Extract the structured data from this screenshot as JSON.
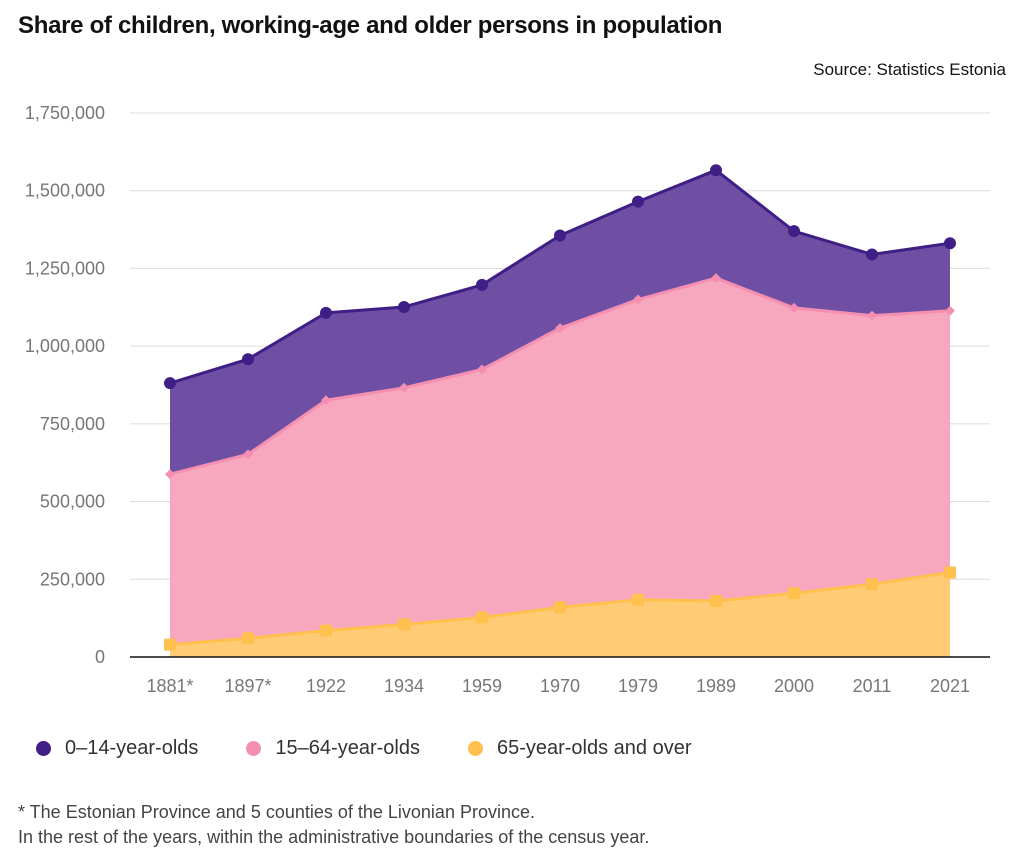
{
  "title": "Share of children, working-age and older persons in population",
  "source": "Source: Statistics Estonia",
  "footnote": {
    "line1": "* The Estonian Province and 5 counties of the Livonian Province.",
    "line2": "In the rest of the years, within the administrative boundaries of the census year."
  },
  "chart_data": {
    "type": "area",
    "stacked": true,
    "categories": [
      "1881*",
      "1897*",
      "1922",
      "1934",
      "1959",
      "1970",
      "1979",
      "1989",
      "2000",
      "2011",
      "2021"
    ],
    "ylim": [
      0,
      1750000
    ],
    "yticks": [
      0,
      250000,
      500000,
      750000,
      1000000,
      1250000,
      1500000,
      1750000
    ],
    "ytick_labels": [
      "0",
      "250,000",
      "500,000",
      "750,000",
      "1,000,000",
      "1,250,000",
      "1,500,000",
      "1,750,000"
    ],
    "grid": true,
    "legend_position": "bottom-left",
    "series": [
      {
        "name": "0–14-year-olds",
        "color": "#3f1f85",
        "fill": "#6e4fa3",
        "marker": "circle",
        "totals": [
          881000,
          958000,
          1107000,
          1126000,
          1197000,
          1356000,
          1465000,
          1566000,
          1370000,
          1295000,
          1331000
        ]
      },
      {
        "name": "15–64-year-olds",
        "color": "#f48fb1",
        "fill": "#f7a8bf",
        "marker": "diamond",
        "totals": [
          588000,
          652000,
          826000,
          866000,
          925000,
          1058000,
          1150000,
          1219000,
          1123000,
          1098000,
          1114000
        ]
      },
      {
        "name": "65-year-olds and over",
        "color": "#ffc04d",
        "fill": "#ffcc75",
        "marker": "square",
        "totals": [
          40000,
          60000,
          85000,
          105000,
          127000,
          160000,
          184000,
          180000,
          205000,
          234000,
          272000
        ]
      }
    ]
  }
}
